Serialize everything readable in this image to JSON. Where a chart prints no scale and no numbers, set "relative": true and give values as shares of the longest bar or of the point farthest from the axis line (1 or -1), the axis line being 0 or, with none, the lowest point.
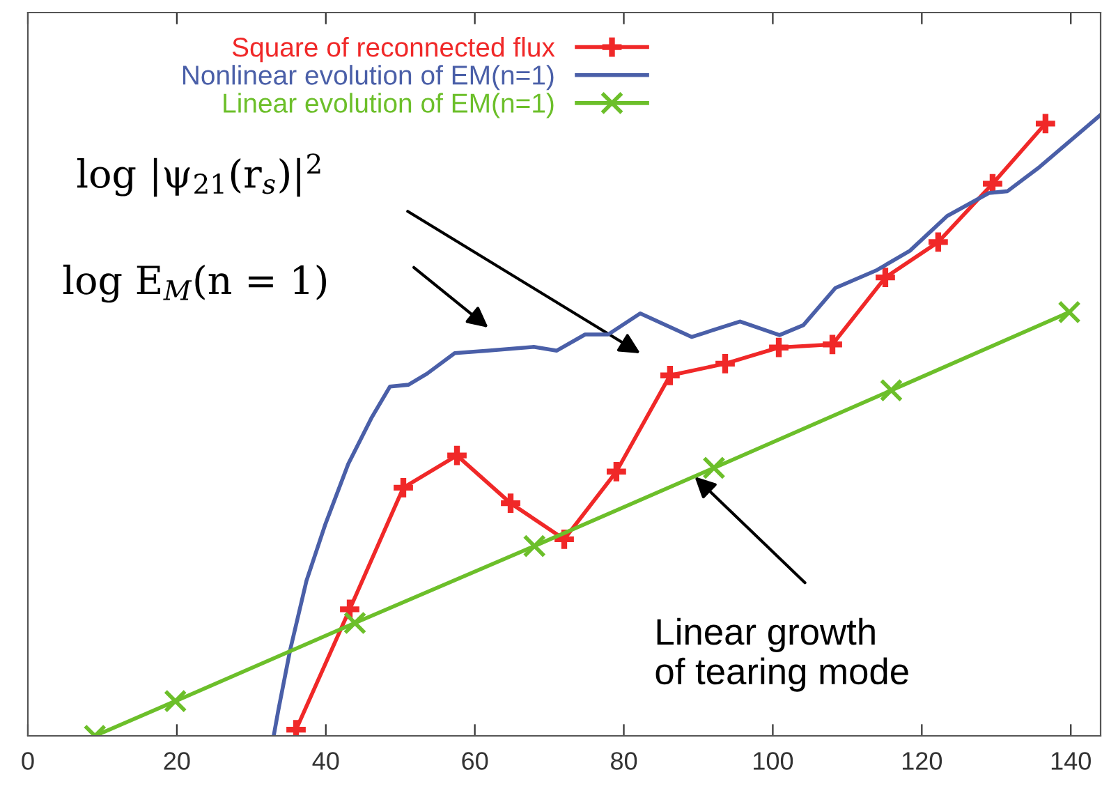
{
  "chart_data": {
    "type": "line",
    "relative": true,
    "xlim": [
      0,
      144
    ],
    "xticks": [
      0,
      20,
      40,
      60,
      80,
      100,
      120,
      140
    ],
    "tick_labels": "x",
    "grid": false,
    "legend": "top",
    "series": [
      {
        "name": "Square of reconnected flux",
        "color": "#f02828",
        "marker": "plus",
        "x": [
          36,
          43.2,
          50.4,
          57.6,
          64.8,
          72.0,
          79.0,
          86.2,
          93.6,
          100.8,
          108.0,
          115.1,
          122.2,
          129.5,
          136.6
        ],
        "values": [
          0.01,
          0.204,
          0.4,
          0.452,
          0.375,
          0.317,
          0.426,
          0.581,
          0.6,
          0.626,
          0.631,
          0.739,
          0.796,
          0.89,
          0.987
        ]
      },
      {
        "name": "Nonlinear evolution of EM(n=1)",
        "color": "#4a5fa8",
        "marker": "none",
        "x": [
          33.0,
          33.6,
          35.2,
          37.4,
          39.9,
          43.0,
          46.1,
          48.6,
          51.1,
          53.6,
          57.3,
          61.7,
          67.9,
          71.0,
          74.8,
          77.9,
          82.2,
          89.1,
          95.6,
          100.9,
          104.1,
          108.4,
          114.0,
          118.4,
          123.4,
          129.0,
          131.5,
          135.8,
          143.9
        ],
        "values": [
          0,
          0.04,
          0.138,
          0.25,
          0.34,
          0.438,
          0.512,
          0.563,
          0.566,
          0.584,
          0.617,
          0.621,
          0.627,
          0.621,
          0.647,
          0.647,
          0.681,
          0.643,
          0.668,
          0.646,
          0.662,
          0.722,
          0.751,
          0.782,
          0.838,
          0.875,
          0.878,
          0.917,
          1.0
        ]
      },
      {
        "name": "Linear evolution of EM(n=1)",
        "color": "#6cbf2a",
        "marker": "cross",
        "x": [
          9.0,
          19.8,
          43.9,
          68.0,
          92.1,
          115.9,
          139.8
        ],
        "values": [
          0,
          0.056,
          0.182,
          0.306,
          0.432,
          0.557,
          0.683
        ]
      }
    ],
    "annotations": [
      "log |ψ$_{21}$(r$_{s}$)|$^{2}$",
      "log E$_{M}$(n = 1)",
      "Linear growth\nof tearing mode"
    ]
  }
}
